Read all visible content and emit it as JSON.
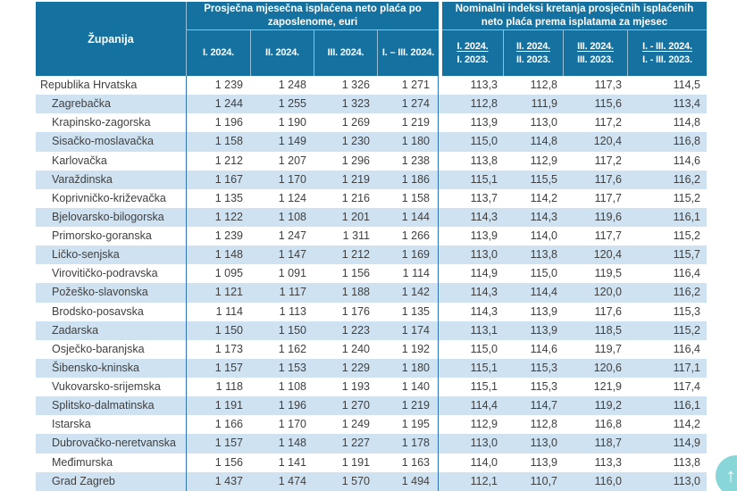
{
  "header": {
    "county_col": "Županija",
    "group1": {
      "title": "Prosječna mjesečna isplaćena neto plaća po zaposlenome, euri",
      "subcols": [
        "I. 2024.",
        "II. 2024.",
        "III. 2024.",
        "I. – III. 2024."
      ]
    },
    "group2": {
      "title": "Nominalni indeksi kretanja prosječnih isplaćenih neto plaća prema isplatama za mjesec",
      "subcols": [
        {
          "top": "I. 2024.",
          "bottom": "I. 2023."
        },
        {
          "top": "II. 2024.",
          "bottom": "II. 2023."
        },
        {
          "top": "III. 2024.",
          "bottom": "III. 2023."
        },
        {
          "top": "I. - III. 2024.",
          "bottom": "I. - III. 2023."
        }
      ]
    }
  },
  "table": {
    "rows": [
      {
        "name": "Republika Hrvatska",
        "indent": 0,
        "values": [
          "1 239",
          "1 248",
          "1 326",
          "1 271",
          "113,3",
          "112,8",
          "117,3",
          "114,5"
        ]
      },
      {
        "name": "Zagrebačka",
        "indent": 1,
        "values": [
          "1 244",
          "1 255",
          "1 323",
          "1 274",
          "112,8",
          "111,9",
          "115,6",
          "113,4"
        ]
      },
      {
        "name": "Krapinsko-zagorska",
        "indent": 1,
        "values": [
          "1 196",
          "1 190",
          "1 269",
          "1 219",
          "113,9",
          "113,0",
          "117,2",
          "114,8"
        ]
      },
      {
        "name": "Sisačko-moslavačka",
        "indent": 1,
        "values": [
          "1 158",
          "1 149",
          "1 230",
          "1 180",
          "115,0",
          "114,8",
          "120,4",
          "116,8"
        ]
      },
      {
        "name": "Karlovačka",
        "indent": 1,
        "values": [
          "1 212",
          "1 207",
          "1 296",
          "1 238",
          "113,8",
          "112,9",
          "117,2",
          "114,6"
        ]
      },
      {
        "name": "Varaždinska",
        "indent": 1,
        "values": [
          "1 167",
          "1 170",
          "1 219",
          "1 186",
          "115,1",
          "115,5",
          "117,6",
          "116,2"
        ]
      },
      {
        "name": "Koprivničko-križevačka",
        "indent": 1,
        "values": [
          "1 135",
          "1 124",
          "1 216",
          "1 158",
          "113,7",
          "114,2",
          "117,7",
          "115,2"
        ]
      },
      {
        "name": "Bjelovarsko-bilogorska",
        "indent": 1,
        "values": [
          "1 122",
          "1 108",
          "1 201",
          "1 144",
          "114,3",
          "114,3",
          "119,6",
          "116,1"
        ]
      },
      {
        "name": "Primorsko-goranska",
        "indent": 1,
        "values": [
          "1 239",
          "1 247",
          "1 311",
          "1 266",
          "113,9",
          "114,0",
          "117,7",
          "115,2"
        ]
      },
      {
        "name": "Ličko-senjska",
        "indent": 1,
        "values": [
          "1 148",
          "1 147",
          "1 212",
          "1 169",
          "113,0",
          "113,8",
          "120,4",
          "115,7"
        ]
      },
      {
        "name": "Virovitičko-podravska",
        "indent": 1,
        "values": [
          "1 095",
          "1 091",
          "1 156",
          "1 114",
          "114,9",
          "115,0",
          "119,5",
          "116,4"
        ]
      },
      {
        "name": "Požeško-slavonska",
        "indent": 1,
        "values": [
          "1 121",
          "1 117",
          "1 188",
          "1 142",
          "114,3",
          "114,4",
          "120,0",
          "116,2"
        ]
      },
      {
        "name": "Brodsko-posavska",
        "indent": 1,
        "values": [
          "1 114",
          "1 113",
          "1 176",
          "1 135",
          "114,3",
          "113,9",
          "117,6",
          "115,3"
        ]
      },
      {
        "name": "Zadarska",
        "indent": 1,
        "values": [
          "1 150",
          "1 150",
          "1 223",
          "1 174",
          "113,1",
          "113,9",
          "118,5",
          "115,2"
        ]
      },
      {
        "name": "Osječko-baranjska",
        "indent": 1,
        "values": [
          "1 173",
          "1 162",
          "1 240",
          "1 192",
          "115,0",
          "114,6",
          "119,7",
          "116,4"
        ]
      },
      {
        "name": "Šibensko-kninska",
        "indent": 1,
        "values": [
          "1 157",
          "1 153",
          "1 229",
          "1 180",
          "115,1",
          "115,3",
          "120,6",
          "117,1"
        ]
      },
      {
        "name": "Vukovarsko-srijemska",
        "indent": 1,
        "values": [
          "1 118",
          "1 108",
          "1 193",
          "1 140",
          "115,1",
          "115,3",
          "121,9",
          "117,4"
        ]
      },
      {
        "name": "Splitsko-dalmatinska",
        "indent": 1,
        "values": [
          "1 191",
          "1 196",
          "1 270",
          "1 219",
          "114,4",
          "114,7",
          "119,2",
          "116,1"
        ]
      },
      {
        "name": "Istarska",
        "indent": 1,
        "values": [
          "1 166",
          "1 170",
          "1 249",
          "1 195",
          "112,9",
          "112,8",
          "116,8",
          "114,2"
        ]
      },
      {
        "name": "Dubrovačko-neretvanska",
        "indent": 1,
        "values": [
          "1 157",
          "1 148",
          "1 227",
          "1 178",
          "113,0",
          "113,0",
          "118,7",
          "114,9"
        ]
      },
      {
        "name": "Međimurska",
        "indent": 1,
        "values": [
          "1 156",
          "1 141",
          "1 191",
          "1 163",
          "114,0",
          "113,9",
          "113,3",
          "113,8"
        ]
      },
      {
        "name": "Grad Zagreb",
        "indent": 1,
        "values": [
          "1 437",
          "1 474",
          "1 570",
          "1 494",
          "112,1",
          "110,7",
          "116,0",
          "113,0"
        ]
      }
    ]
  },
  "icons": {
    "arrow_up": "↑"
  },
  "colors": {
    "header_bg": "#15719f",
    "row_stripe": "#cfe2f2",
    "divider_line": "#2e74b5",
    "body_text": "#404040",
    "scroll_button": "#5ac6c9"
  }
}
